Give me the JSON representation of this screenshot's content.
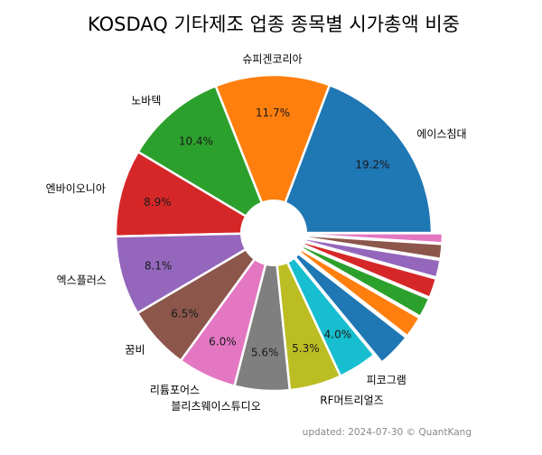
{
  "chart_data": {
    "type": "pie",
    "title": "KOSDAQ 기타제조 업종 종목별 시가총액 비중",
    "footnote": "updated: 2024-07-30 © QuantKang",
    "slices": [
      {
        "label": "에이스침대",
        "value": 19.2,
        "value_label": "19.2%",
        "color": "#1f77b4",
        "explode": 0
      },
      {
        "label": "슈피겐코리아",
        "value": 11.7,
        "value_label": "11.7%",
        "color": "#ff7f0e",
        "explode": 0
      },
      {
        "label": "노바텍",
        "value": 10.4,
        "value_label": "10.4%",
        "color": "#2ca02c",
        "explode": 0
      },
      {
        "label": "엔바이오니아",
        "value": 8.9,
        "value_label": "8.9%",
        "color": "#d62728",
        "explode": 0
      },
      {
        "label": "엑스플러스",
        "value": 8.1,
        "value_label": "8.1%",
        "color": "#9467bd",
        "explode": 0
      },
      {
        "label": "꿈비",
        "value": 6.5,
        "value_label": "6.5%",
        "color": "#8c564b",
        "explode": 0
      },
      {
        "label": "리튬포어스",
        "value": 6.0,
        "value_label": "6.0%",
        "color": "#e377c2",
        "explode": 0
      },
      {
        "label": "블리츠웨이스튜디오",
        "value": 5.6,
        "value_label": "5.6%",
        "color": "#7f7f7f",
        "explode": 0
      },
      {
        "label": "RF머트리얼즈",
        "value": 5.3,
        "value_label": "5.3%",
        "color": "#bcbd22",
        "explode": 0
      },
      {
        "label": "피코그램",
        "value": 4.0,
        "value_label": "4.0%",
        "color": "#17becf",
        "explode": 0
      },
      {
        "label": "",
        "value": 3.5,
        "value_label": "",
        "color": "#1f77b4",
        "explode": 1
      },
      {
        "label": "",
        "value": 2.2,
        "value_label": "",
        "color": "#ff7f0e",
        "explode": 1
      },
      {
        "label": "",
        "value": 2.0,
        "value_label": "",
        "color": "#2ca02c",
        "explode": 1
      },
      {
        "label": "",
        "value": 2.0,
        "value_label": "",
        "color": "#d62728",
        "explode": 1
      },
      {
        "label": "",
        "value": 1.8,
        "value_label": "",
        "color": "#9467bd",
        "explode": 1
      },
      {
        "label": "",
        "value": 1.5,
        "value_label": "",
        "color": "#8c564b",
        "explode": 1
      },
      {
        "label": "",
        "value": 1.0,
        "value_label": "",
        "color": "#e377c2",
        "explode": 1
      }
    ]
  }
}
